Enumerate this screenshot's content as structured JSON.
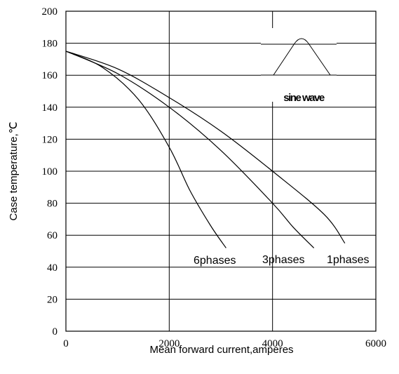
{
  "chart_data": {
    "type": "line",
    "title": "",
    "xlabel": "Mean forward  current,amperes",
    "ylabel": "Case temperature,℃",
    "xlim": [
      0,
      6000
    ],
    "ylim": [
      0,
      200
    ],
    "xticks": [
      0,
      2000,
      4000,
      6000
    ],
    "yticks": [
      0,
      20,
      40,
      60,
      80,
      100,
      120,
      140,
      160,
      180,
      200
    ],
    "grid": true,
    "series": [
      {
        "name": "1phases",
        "points": [
          [
            0,
            175
          ],
          [
            1000,
            164
          ],
          [
            2000,
            146
          ],
          [
            3000,
            125
          ],
          [
            4000,
            100
          ],
          [
            5000,
            73
          ],
          [
            5400,
            55
          ]
        ]
      },
      {
        "name": "3phases",
        "points": [
          [
            0,
            175
          ],
          [
            1000,
            161
          ],
          [
            2000,
            140
          ],
          [
            3000,
            113
          ],
          [
            4000,
            80
          ],
          [
            4400,
            65
          ],
          [
            4800,
            52
          ]
        ]
      },
      {
        "name": "6phases",
        "points": [
          [
            0,
            175
          ],
          [
            700,
            165
          ],
          [
            1400,
            145
          ],
          [
            2000,
            115
          ],
          [
            2400,
            88
          ],
          [
            2800,
            66
          ],
          [
            3100,
            52
          ]
        ]
      }
    ],
    "annotations": [
      {
        "text": "6phases"
      },
      {
        "text": "3phases"
      },
      {
        "text": "1phases"
      }
    ],
    "inset": {
      "label": "sine wave"
    }
  }
}
